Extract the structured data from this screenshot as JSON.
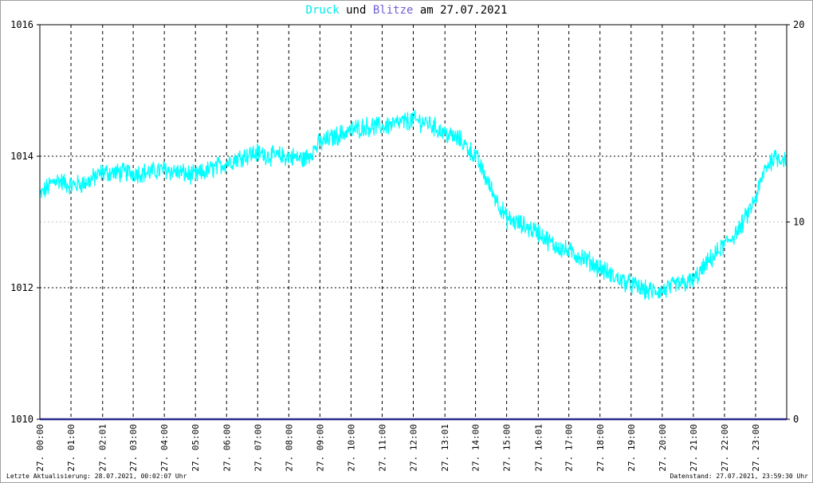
{
  "title": {
    "part1": "Druck",
    "part2": " und ",
    "part3": "Blitze",
    "part4": " am 27.07.2021"
  },
  "colors": {
    "pressure": "#00ffff",
    "lightning": "#2a2a8c",
    "title_pressure": "#00e8e8",
    "title_lightning": "#6e5fd8"
  },
  "footer": {
    "left": "Letzte Aktualisierung: 28.07.2021, 00:02:07 Uhr",
    "right": "Datenstand: 27.07.2021, 23:59:30 Uhr"
  },
  "chart_data": {
    "type": "line",
    "title": "Druck und Blitze am 27.07.2021",
    "y_left": {
      "range": [
        1010,
        1016
      ],
      "ticks": [
        "1010",
        "1012",
        "1014",
        "1016"
      ]
    },
    "y_right": {
      "range": [
        0,
        20
      ],
      "ticks": [
        "0",
        "10",
        "20"
      ]
    },
    "x_ticks": [
      "27. 00:00",
      "27. 01:00",
      "27. 02:01",
      "27. 03:00",
      "27. 04:00",
      "27. 05:00",
      "27. 06:00",
      "27. 07:00",
      "27. 08:00",
      "27. 09:00",
      "27. 10:00",
      "27. 11:00",
      "27. 12:00",
      "27. 13:01",
      "27. 14:00",
      "27. 15:00",
      "27. 16:01",
      "27. 17:00",
      "27. 18:00",
      "27. 19:00",
      "27. 20:00",
      "27. 21:00",
      "27. 22:00",
      "27. 23:00"
    ],
    "x_tick_hours": [
      0,
      1,
      2.017,
      3,
      4,
      5,
      6,
      7,
      8,
      9,
      10,
      11,
      12,
      13.017,
      14,
      15,
      16.017,
      17,
      18,
      19,
      20,
      21,
      22,
      23
    ],
    "grid": true,
    "series": [
      {
        "name": "Druck",
        "axis": "left",
        "x_hours": [
          0,
          0.5,
          1,
          1.5,
          2,
          2.5,
          3,
          3.5,
          4,
          4.5,
          5,
          5.5,
          6,
          6.5,
          7,
          7.5,
          8,
          8.5,
          9,
          9.5,
          10,
          10.5,
          11,
          11.5,
          12,
          12.5,
          13,
          13.5,
          14,
          14.5,
          15,
          15.5,
          16,
          16.5,
          17,
          17.5,
          18,
          18.5,
          19,
          19.5,
          20,
          20.5,
          21,
          21.5,
          22,
          22.5,
          23,
          23.3,
          23.6,
          23.97
        ],
        "values": [
          1013.4,
          1013.65,
          1013.55,
          1013.6,
          1013.75,
          1013.75,
          1013.75,
          1013.75,
          1013.8,
          1013.75,
          1013.7,
          1013.8,
          1013.9,
          1014.0,
          1014.05,
          1014.0,
          1014.0,
          1013.95,
          1014.2,
          1014.3,
          1014.4,
          1014.45,
          1014.45,
          1014.5,
          1014.55,
          1014.5,
          1014.35,
          1014.25,
          1014.0,
          1013.5,
          1013.05,
          1012.95,
          1012.85,
          1012.65,
          1012.55,
          1012.45,
          1012.3,
          1012.15,
          1012.05,
          1011.95,
          1011.95,
          1012.05,
          1012.1,
          1012.4,
          1012.65,
          1012.9,
          1013.35,
          1013.8,
          1014.0,
          1013.95
        ]
      },
      {
        "name": "Blitze",
        "axis": "right",
        "x_hours": [
          0,
          23.97
        ],
        "values": [
          0,
          0
        ]
      }
    ]
  }
}
